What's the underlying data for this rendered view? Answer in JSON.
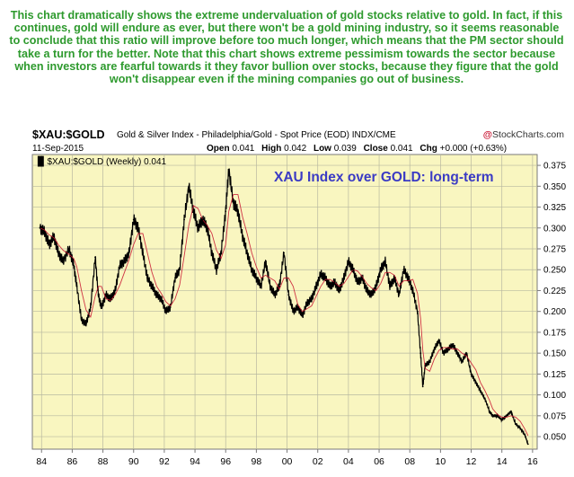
{
  "commentary": "This chart dramatically shows the extreme undervaluation of gold stocks relative to gold. In fact, if this continues, gold will endure as ever, but there won't be a gold mining industry, so it seems reasonable to conclude that this ratio will improve before too much longer, which means that the PM sector should take a turn for the better. Note that this chart shows extreme pessimism towards the sector because when investors are fearful towards it they favor bullion over stocks, because they figure that the gold won't disappear even if the mining companies go out of business.",
  "header": {
    "symbol": "$XAU:$GOLD",
    "description": "Gold & Silver Index - Philadelphia/Gold - Spot Price (EOD)  INDX/CME",
    "attribution_mark": "@",
    "attribution": "StockCharts.com",
    "date": "11-Sep-2015",
    "ohlc": {
      "open_label": "Open",
      "open": "0.041",
      "high_label": "High",
      "high": "0.042",
      "low_label": "Low",
      "low": "0.039",
      "close_label": "Close",
      "close": "0.041",
      "chg_label": "Chg",
      "chg": "+0.000 (+0.63%)"
    }
  },
  "colors": {
    "commentary": "#2e9a2e",
    "plot_bg": "#f9f6c0",
    "grid": "#b8b8a0",
    "price": "#000000",
    "ma": "#c8102e",
    "title": "#3b3bc4",
    "frame": "#7a7a7a"
  },
  "chart_data": {
    "type": "line",
    "legend": "$XAU:$GOLD (Weekly) 0.041",
    "title": "XAU Index over GOLD: long-term",
    "xlabel": "",
    "ylabel": "",
    "x_tick_labels": [
      "84",
      "86",
      "88",
      "90",
      "92",
      "94",
      "96",
      "98",
      "00",
      "02",
      "04",
      "06",
      "08",
      "10",
      "12",
      "14",
      "16"
    ],
    "y_ticks": [
      0.05,
      0.075,
      0.1,
      0.125,
      0.15,
      0.175,
      0.2,
      0.225,
      0.25,
      0.275,
      0.3,
      0.325,
      0.35,
      0.375
    ],
    "y_tick_labels": [
      "0.050",
      "0.075",
      "0.100",
      "0.125",
      "0.150",
      "0.175",
      "0.200",
      "0.225",
      "0.250",
      "0.275",
      "0.300",
      "0.325",
      "0.350",
      "0.375"
    ],
    "xlim": [
      1983.4,
      2016.3
    ],
    "ylim": [
      0.035,
      0.388
    ],
    "grid": true,
    "series": [
      {
        "name": "$XAU:$GOLD (Weekly)",
        "x": [
          1983.9,
          1984.2,
          1984.5,
          1984.8,
          1985.1,
          1985.4,
          1985.8,
          1986.1,
          1986.3,
          1986.6,
          1986.9,
          1987.2,
          1987.5,
          1987.7,
          1987.9,
          1988.2,
          1988.5,
          1988.8,
          1989.1,
          1989.4,
          1989.7,
          1990.0,
          1990.3,
          1990.6,
          1990.9,
          1991.2,
          1991.5,
          1991.8,
          1992.1,
          1992.4,
          1992.7,
          1993.0,
          1993.3,
          1993.6,
          1993.9,
          1994.2,
          1994.5,
          1994.8,
          1995.1,
          1995.4,
          1995.7,
          1996.0,
          1996.2,
          1996.5,
          1996.8,
          1997.1,
          1997.4,
          1997.7,
          1998.0,
          1998.3,
          1998.6,
          1998.9,
          1999.2,
          1999.5,
          1999.8,
          2000.1,
          2000.4,
          2000.7,
          2001.0,
          2001.3,
          2001.6,
          2001.9,
          2002.2,
          2002.5,
          2002.8,
          2003.1,
          2003.4,
          2003.7,
          2004.0,
          2004.3,
          2004.6,
          2004.9,
          2005.2,
          2005.5,
          2005.8,
          2006.1,
          2006.4,
          2006.7,
          2007.0,
          2007.3,
          2007.6,
          2007.9,
          2008.2,
          2008.5,
          2008.7,
          2008.85,
          2009.0,
          2009.3,
          2009.6,
          2009.9,
          2010.2,
          2010.5,
          2010.8,
          2011.1,
          2011.4,
          2011.7,
          2012.0,
          2012.3,
          2012.6,
          2012.9,
          2013.2,
          2013.4,
          2013.7,
          2014.0,
          2014.3,
          2014.6,
          2014.9,
          2015.2,
          2015.5,
          2015.7
        ],
        "values": [
          0.3,
          0.295,
          0.28,
          0.29,
          0.27,
          0.26,
          0.275,
          0.255,
          0.23,
          0.19,
          0.185,
          0.205,
          0.265,
          0.22,
          0.205,
          0.22,
          0.215,
          0.225,
          0.255,
          0.26,
          0.27,
          0.31,
          0.3,
          0.27,
          0.24,
          0.23,
          0.22,
          0.215,
          0.2,
          0.205,
          0.24,
          0.25,
          0.31,
          0.35,
          0.32,
          0.3,
          0.31,
          0.3,
          0.27,
          0.25,
          0.27,
          0.32,
          0.37,
          0.33,
          0.32,
          0.29,
          0.27,
          0.25,
          0.24,
          0.23,
          0.26,
          0.23,
          0.22,
          0.23,
          0.27,
          0.22,
          0.2,
          0.205,
          0.195,
          0.21,
          0.215,
          0.23,
          0.245,
          0.24,
          0.23,
          0.235,
          0.225,
          0.24,
          0.26,
          0.25,
          0.235,
          0.24,
          0.225,
          0.22,
          0.23,
          0.25,
          0.26,
          0.23,
          0.24,
          0.22,
          0.25,
          0.24,
          0.225,
          0.2,
          0.15,
          0.11,
          0.135,
          0.14,
          0.155,
          0.165,
          0.15,
          0.155,
          0.16,
          0.15,
          0.14,
          0.15,
          0.125,
          0.115,
          0.105,
          0.095,
          0.08,
          0.075,
          0.075,
          0.07,
          0.075,
          0.08,
          0.065,
          0.06,
          0.052,
          0.041
        ]
      }
    ]
  }
}
